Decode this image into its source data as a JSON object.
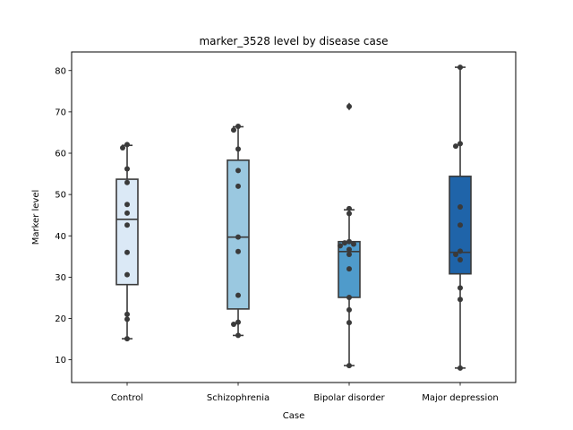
{
  "chart_data": {
    "type": "boxplot",
    "title": "marker_3528 level by disease case",
    "xlabel": "Case",
    "ylabel": "Marker level",
    "ylim": [
      4.5,
      84.5
    ],
    "yticks": [
      10,
      20,
      30,
      40,
      50,
      60,
      70,
      80
    ],
    "grid": false,
    "categories": [
      "Control",
      "Schizophrenia",
      "Bipolar disorder",
      "Major depression"
    ],
    "colors": [
      "#dbe9f6",
      "#9ac8e0",
      "#4f9bcb",
      "#1f64a9"
    ],
    "boxes": [
      {
        "q1": 28.2,
        "median": 44.0,
        "q3": 53.7,
        "whisker_low": 15.1,
        "whisker_high": 61.9,
        "outliers": []
      },
      {
        "q1": 22.3,
        "median": 39.7,
        "q3": 58.3,
        "whisker_low": 15.9,
        "whisker_high": 66.4,
        "outliers": []
      },
      {
        "q1": 25.1,
        "median": 36.2,
        "q3": 38.6,
        "whisker_low": 8.6,
        "whisker_high": 46.3,
        "outliers": [
          71.3
        ]
      },
      {
        "q1": 30.8,
        "median": 36.0,
        "q3": 54.4,
        "whisker_low": 8.0,
        "whisker_high": 80.8,
        "outliers": []
      }
    ],
    "points": [
      [
        62.1,
        61.3,
        56.2,
        52.9,
        47.6,
        45.5,
        42.6,
        36.0,
        30.6,
        21.0,
        19.8,
        15.1
      ],
      [
        66.5,
        65.6,
        61.0,
        55.8,
        52.0,
        39.7,
        36.2,
        25.6,
        19.1,
        18.6,
        15.9
      ],
      [
        71.3,
        46.6,
        45.4,
        38.6,
        38.3,
        38.0,
        37.6,
        36.7,
        35.5,
        32.0,
        25.1,
        22.1,
        19.0,
        8.6
      ],
      [
        80.8,
        62.3,
        61.7,
        47.0,
        42.6,
        36.3,
        35.5,
        34.2,
        27.4,
        24.6,
        8.0
      ]
    ]
  }
}
